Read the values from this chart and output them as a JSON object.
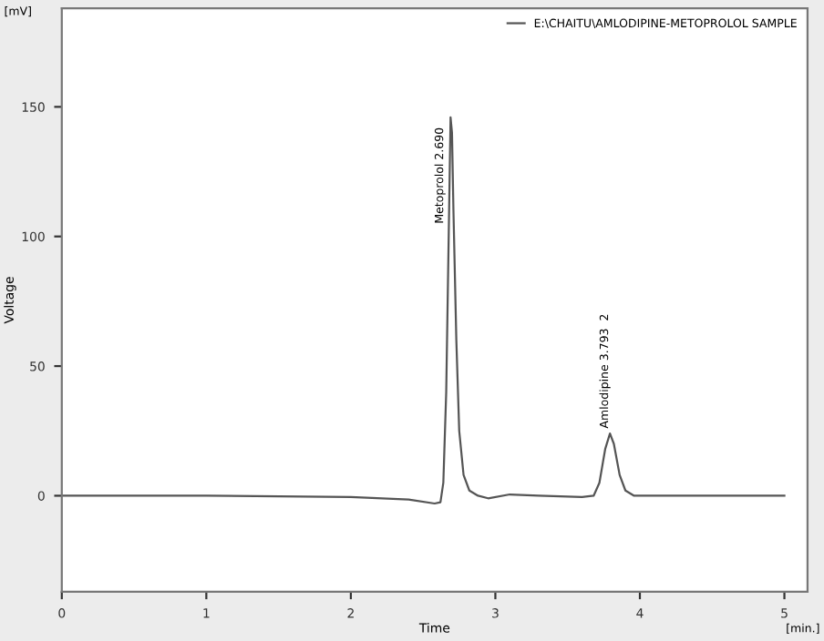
{
  "chart_data": {
    "type": "line",
    "xlabel": "Time",
    "ylabel": "Voltage",
    "annotations": [
      "[mV]",
      "[min.]",
      {
        "text": "Metoprolol 2.690",
        "x": 2.69,
        "y": 146
      },
      {
        "text": "Amlodipine 3.793  2",
        "x": 3.793,
        "y": 24
      }
    ],
    "x": [
      0,
      1,
      2,
      2.4,
      2.58,
      2.62,
      2.64,
      2.66,
      2.68,
      2.69,
      2.7,
      2.71,
      2.73,
      2.75,
      2.78,
      2.82,
      2.88,
      2.95,
      3.1,
      3.3,
      3.6,
      3.68,
      3.72,
      3.76,
      3.793,
      3.82,
      3.86,
      3.9,
      3.96,
      4.2,
      5
    ],
    "series": [
      {
        "name": "E:\\CHAITU\\AMLODIPINE-METOPROLOL SAMPLE",
        "color": "#555555",
        "values": [
          0,
          0,
          -0.5,
          -1.5,
          -3,
          -2.5,
          5,
          40,
          110,
          146,
          140,
          110,
          60,
          25,
          8,
          2,
          0,
          -1,
          0.5,
          0,
          -0.5,
          0,
          5,
          18,
          24,
          20,
          8,
          2,
          0,
          0,
          0
        ]
      }
    ],
    "xlim": [
      0,
      5.16
    ],
    "xticks": [
      0,
      1,
      2,
      3,
      4,
      5
    ],
    "ylim": [
      -37,
      188
    ],
    "yticks": [
      0,
      50,
      100,
      150
    ],
    "grid": false,
    "legend": "top right",
    "marker": "none",
    "line_style": "solid"
  }
}
